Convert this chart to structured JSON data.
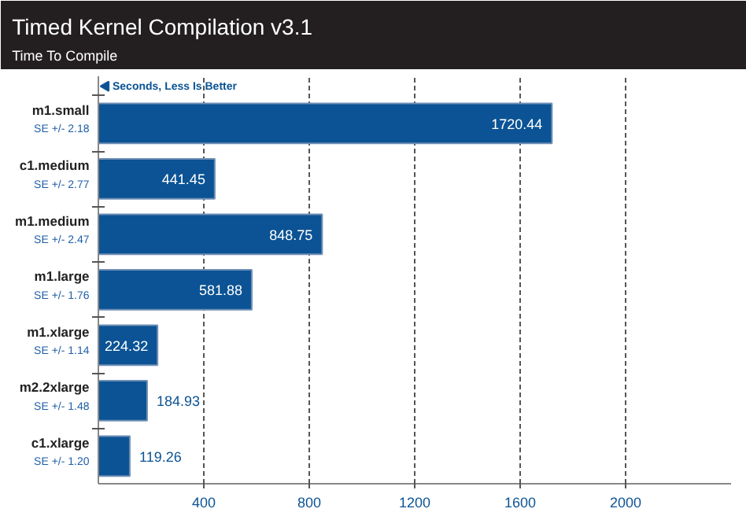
{
  "chart_data": {
    "type": "bar",
    "orientation": "horizontal",
    "title": "Timed Kernel Compilation v3.1",
    "subtitle": "Time To Compile",
    "categories": [
      "m1.small",
      "c1.medium",
      "m1.medium",
      "m1.large",
      "m1.xlarge",
      "m2.2xlarge",
      "c1.xlarge"
    ],
    "values": [
      1720.44,
      441.45,
      848.75,
      581.88,
      224.32,
      184.93,
      119.26
    ],
    "color": "#0b5394",
    "data_labels": true,
    "xlim": [
      0,
      2400
    ],
    "xticks": [
      400,
      800,
      1200,
      1600,
      2000
    ],
    "grid": "x",
    "annotations": [
      "Seconds, Less Is Better",
      "SE +/- 2.18",
      "SE +/- 2.77",
      "SE +/- 2.47",
      "SE +/- 1.76",
      "SE +/- 1.14",
      "SE +/- 1.48",
      "SE +/- 1.20"
    ]
  }
}
